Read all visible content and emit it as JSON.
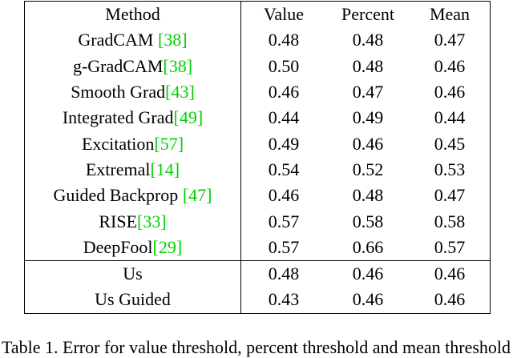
{
  "table": {
    "header": [
      "Method",
      "Value",
      "Percent",
      "Mean"
    ],
    "rows": [
      {
        "method": "GradCAM ",
        "cite": "[38]",
        "cells": [
          "0.48",
          "0.48",
          "0.47"
        ],
        "bold": [
          false,
          false,
          false
        ]
      },
      {
        "method": "g-GradCAM",
        "cite": "[38]",
        "cells": [
          "0.50",
          "0.48",
          "0.46"
        ],
        "bold": [
          false,
          false,
          false
        ]
      },
      {
        "method": "Smooth Grad",
        "cite": "[43]",
        "cells": [
          "0.46",
          "0.47",
          "0.46"
        ],
        "bold": [
          false,
          false,
          false
        ]
      },
      {
        "method": "Integrated Grad",
        "cite": "[49]",
        "cells": [
          "0.44",
          "0.49",
          "0.44"
        ],
        "bold": [
          false,
          false,
          true
        ]
      },
      {
        "method": "Excitation",
        "cite": "[57]",
        "cells": [
          "0.49",
          "0.46",
          "0.45"
        ],
        "bold": [
          false,
          true,
          false
        ]
      },
      {
        "method": "Extremal",
        "cite": "[14]",
        "cells": [
          "0.54",
          "0.52",
          "0.53"
        ],
        "bold": [
          false,
          false,
          false
        ]
      },
      {
        "method": "Guided Backprop ",
        "cite": "[47]",
        "cells": [
          "0.46",
          "0.48",
          "0.47"
        ],
        "bold": [
          false,
          false,
          false
        ]
      },
      {
        "method": "RISE",
        "cite": "[33]",
        "cells": [
          "0.57",
          "0.58",
          "0.58"
        ],
        "bold": [
          false,
          false,
          false
        ]
      },
      {
        "method": "DeepFool",
        "cite": "[29]",
        "cells": [
          "0.57",
          "0.66",
          "0.57"
        ],
        "bold": [
          false,
          false,
          false
        ]
      },
      {
        "method": "Us",
        "cells": [
          "0.48",
          "0.46",
          "0.46"
        ],
        "bold": [
          false,
          false,
          false
        ],
        "separator": true
      },
      {
        "method": "Us Guided",
        "cells": [
          "0.43",
          "0.46",
          "0.46"
        ],
        "bold": [
          true,
          true,
          false
        ]
      }
    ],
    "caption": "Table 1. Error for value threshold, percent threshold and mean threshold"
  }
}
